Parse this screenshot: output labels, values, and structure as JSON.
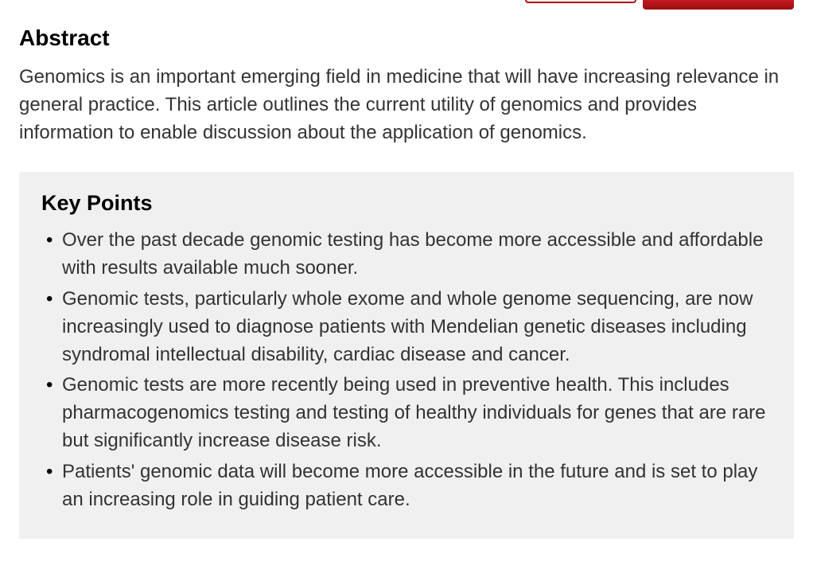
{
  "abstract": {
    "heading": "Abstract",
    "text": "Genomics is an important emerging field in medicine that will have increasing relevance in general practice. This article outlines the current utility of genomics and provides information to enable discussion about the application of genomics."
  },
  "keyPoints": {
    "heading": "Key Points",
    "items": [
      "Over the past decade genomic testing has become more accessible and affordable with results available much sooner.",
      "Genomic tests, particularly whole exome and whole genome sequencing, are now increasingly used to diagnose patients with Mendelian genetic diseases including syndromal intellectual disability, cardiac disease and cancer.",
      "Genomic tests are more recently being used in preventive health. This includes pharmacogenomics testing and testing of healthy individuals for genes that are rare but significantly increase disease risk.",
      "Patients' genomic data will become more accessible in the future and is set to play an increasing role in guiding patient care."
    ]
  },
  "styling": {
    "accent_color": "#b01116",
    "background_color": "#ffffff",
    "box_background": "#f0f0f0",
    "text_color": "#333333",
    "heading_color": "#000000",
    "heading_fontsize": 28,
    "body_fontsize": 24,
    "line_height": 1.45
  }
}
